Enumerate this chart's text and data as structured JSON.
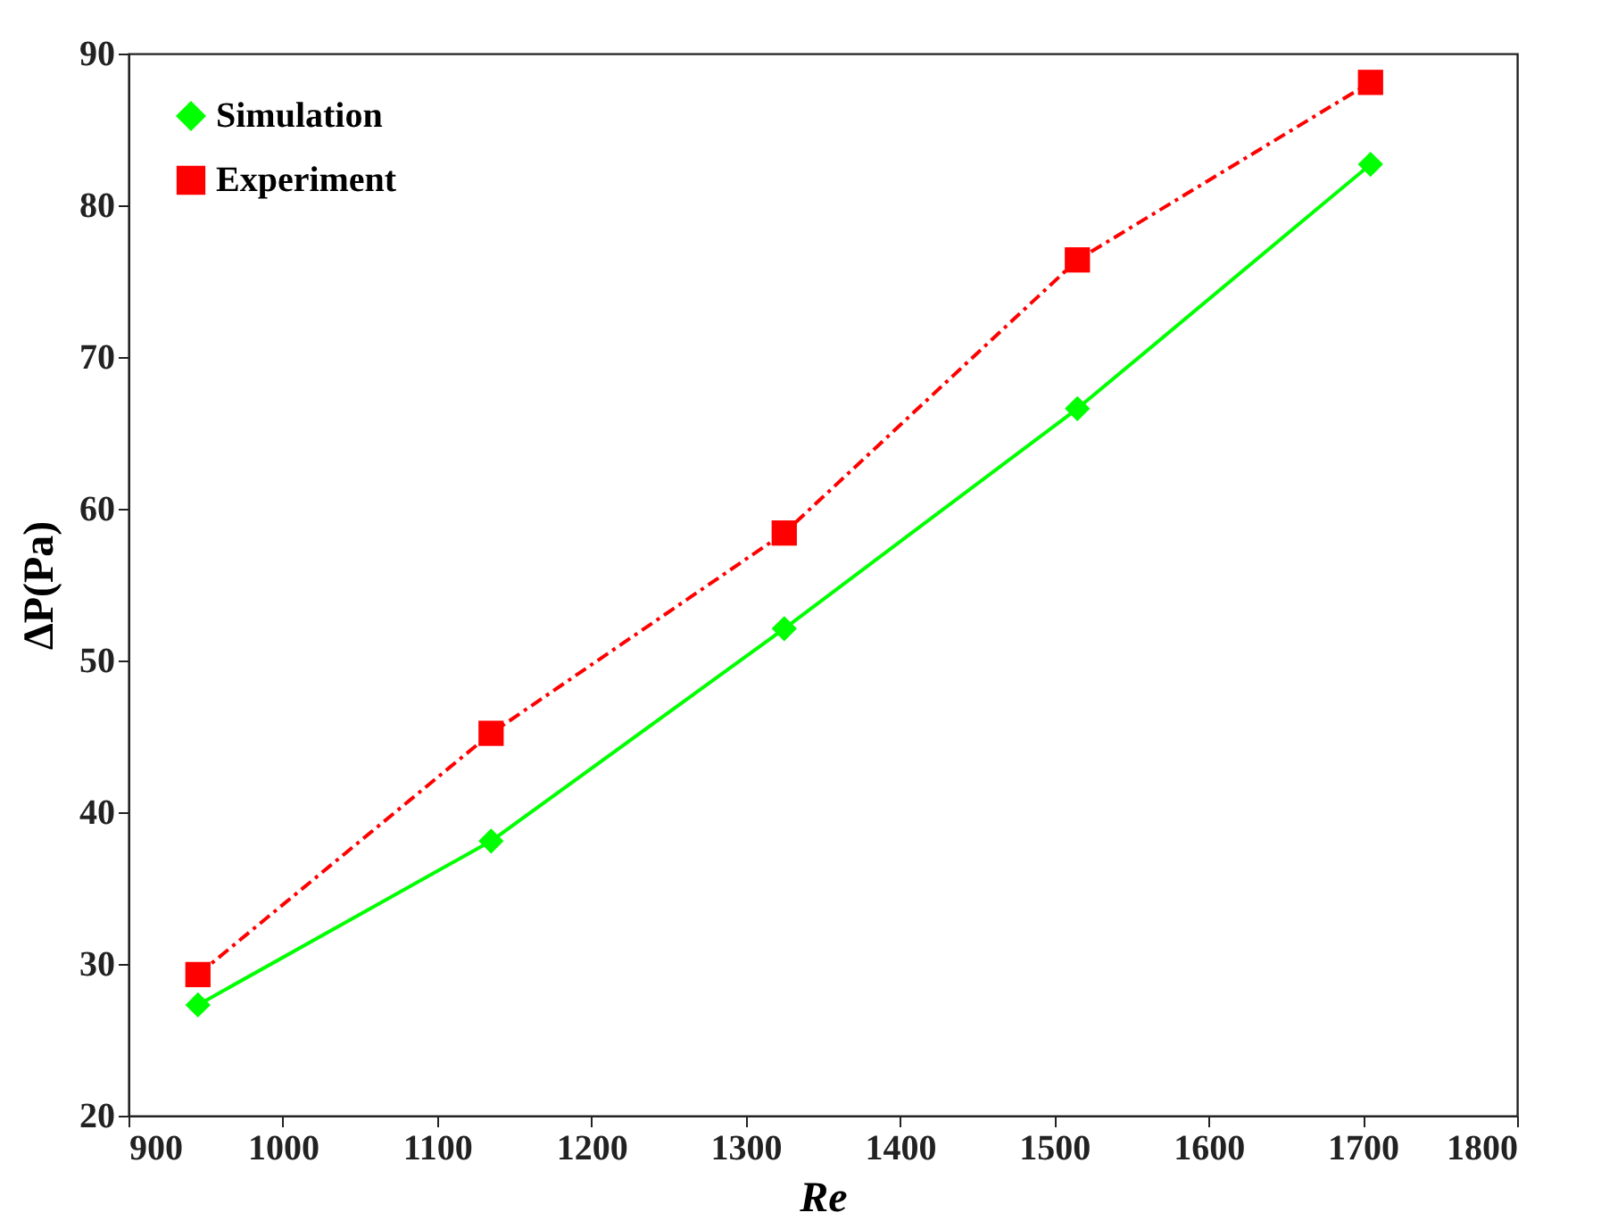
{
  "chart_data": {
    "type": "line",
    "xlabel": "Re",
    "ylabel": "ΔP(Pa)",
    "x": [
      945,
      1135,
      1325,
      1515,
      1705
    ],
    "series": [
      {
        "name": "Simulation",
        "color": "#00ff00",
        "marker": "diamond",
        "line_style": "solid",
        "values": [
          27.3,
          38.1,
          52.1,
          66.6,
          82.7
        ]
      },
      {
        "name": "Experiment",
        "color": "#ff0000",
        "marker": "square",
        "line_style": "dashed",
        "values": [
          29.3,
          45.2,
          58.4,
          76.4,
          88.1
        ]
      }
    ],
    "xlim": [
      900,
      1800
    ],
    "xticks": [
      900,
      1000,
      1100,
      1200,
      1300,
      1400,
      1500,
      1600,
      1700,
      1800
    ],
    "ylim": [
      20,
      90
    ],
    "yticks": [
      20,
      30,
      40,
      50,
      60,
      70,
      80,
      90
    ],
    "grid": false,
    "legend": "top left"
  }
}
